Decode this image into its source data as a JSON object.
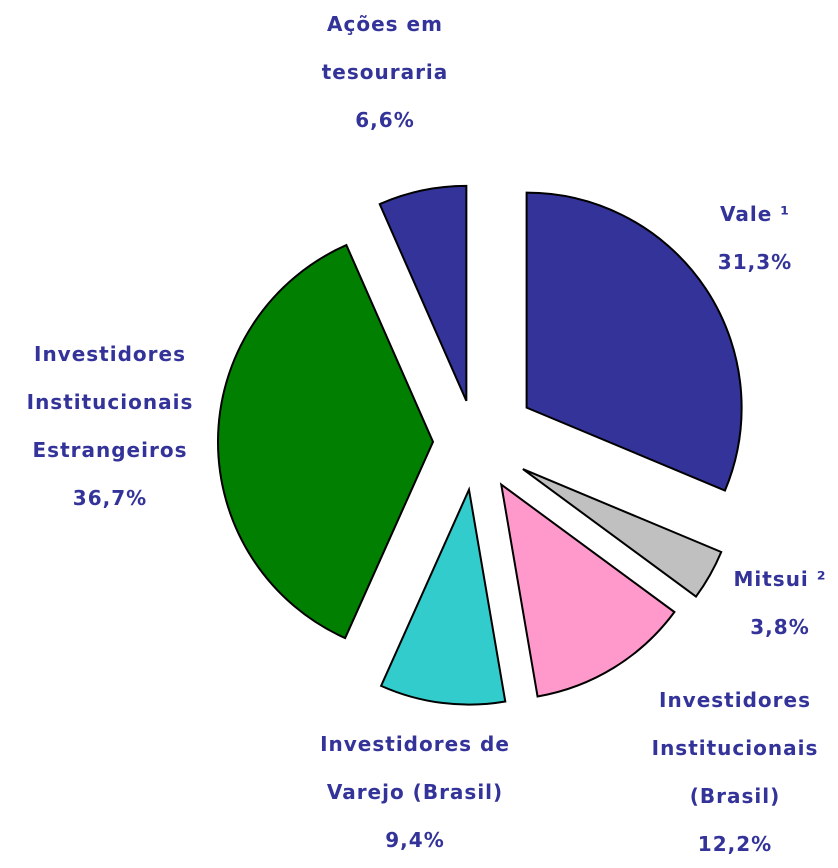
{
  "chart_data": {
    "type": "pie",
    "categories": [
      "Vale ¹",
      "Mitsui ²",
      "Investidores Institucionais (Brasil)",
      "Investidores de Varejo (Brasil)",
      "Investidores Institucionais Estrangeiros",
      "Ações em tesouraria"
    ],
    "values": [
      31.3,
      3.8,
      12.2,
      9.4,
      36.7,
      6.6
    ],
    "value_labels": [
      "31,3%",
      "3,8%",
      "12,2%",
      "9,4%",
      "36,7%",
      "6,6%"
    ],
    "colors": [
      "#333399",
      "#c0c0c0",
      "#ff99cc",
      "#33cccc",
      "#007f00",
      "#333399"
    ]
  }
}
